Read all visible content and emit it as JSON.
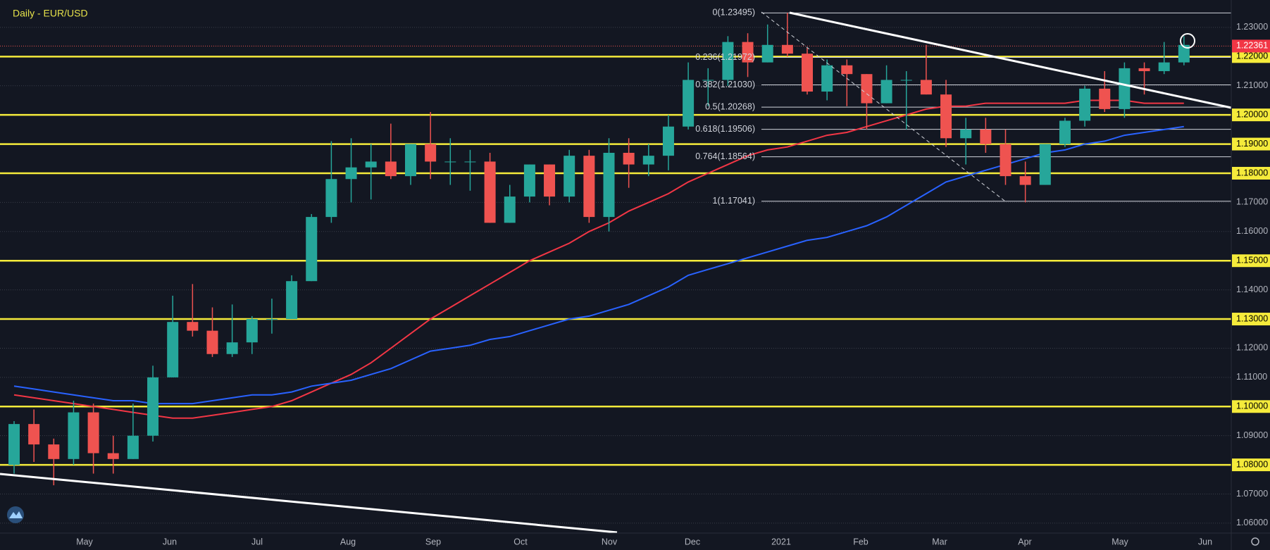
{
  "chart_data": {
    "type": "candlestick",
    "title": "Daily - EUR/USD",
    "x_labels": [
      "May",
      "Jun",
      "Jul",
      "Aug",
      "Sep",
      "Oct",
      "Nov",
      "Dec",
      "2021",
      "Feb",
      "Mar",
      "Apr",
      "May",
      "Jun"
    ],
    "candles": {
      "open": [
        1.08,
        1.094,
        1.087,
        1.082,
        1.098,
        1.084,
        1.082,
        1.09,
        1.11,
        1.129,
        1.126,
        1.118,
        1.122,
        1.13,
        1.13,
        1.143,
        1.165,
        1.178,
        1.182,
        1.184,
        1.179,
        1.19,
        1.184,
        1.184,
        1.184,
        1.163,
        1.172,
        1.183,
        1.172,
        1.186,
        1.165,
        1.187,
        1.183,
        1.186,
        1.196,
        1.212,
        1.212,
        1.225,
        1.218,
        1.224,
        1.221,
        1.208,
        1.217,
        1.214,
        1.204,
        1.212,
        1.212,
        1.207,
        1.192,
        1.195,
        1.19,
        1.179,
        1.176,
        1.19,
        1.198,
        1.209,
        1.202,
        1.216,
        1.215,
        1.218
      ],
      "high": [
        1.095,
        1.099,
        1.089,
        1.102,
        1.101,
        1.09,
        1.101,
        1.114,
        1.138,
        1.142,
        1.134,
        1.135,
        1.131,
        1.137,
        1.145,
        1.166,
        1.191,
        1.192,
        1.19,
        1.197,
        1.19,
        1.201,
        1.192,
        1.188,
        1.187,
        1.176,
        1.183,
        1.183,
        1.188,
        1.188,
        1.192,
        1.192,
        1.19,
        1.2,
        1.218,
        1.216,
        1.227,
        1.228,
        1.231,
        1.235,
        1.223,
        1.219,
        1.219,
        1.214,
        1.217,
        1.215,
        1.224,
        1.212,
        1.199,
        1.199,
        1.195,
        1.184,
        1.19,
        1.199,
        1.21,
        1.215,
        1.218,
        1.218,
        1.225,
        1.227
      ],
      "low": [
        1.077,
        1.081,
        1.073,
        1.08,
        1.077,
        1.077,
        1.082,
        1.088,
        1.11,
        1.124,
        1.117,
        1.117,
        1.118,
        1.125,
        1.13,
        1.143,
        1.163,
        1.17,
        1.171,
        1.178,
        1.176,
        1.178,
        1.176,
        1.174,
        1.163,
        1.163,
        1.17,
        1.169,
        1.17,
        1.163,
        1.16,
        1.175,
        1.179,
        1.181,
        1.195,
        1.203,
        1.21,
        1.213,
        1.218,
        1.22,
        1.207,
        1.205,
        1.203,
        1.195,
        1.204,
        1.195,
        1.207,
        1.189,
        1.183,
        1.187,
        1.176,
        1.17,
        1.176,
        1.189,
        1.196,
        1.201,
        1.199,
        1.207,
        1.214,
        1.217
      ],
      "close": [
        1.094,
        1.087,
        1.082,
        1.098,
        1.084,
        1.082,
        1.09,
        1.11,
        1.129,
        1.126,
        1.118,
        1.122,
        1.13,
        1.13,
        1.143,
        1.165,
        1.178,
        1.182,
        1.184,
        1.179,
        1.19,
        1.184,
        1.184,
        1.184,
        1.163,
        1.172,
        1.183,
        1.172,
        1.186,
        1.165,
        1.187,
        1.183,
        1.186,
        1.196,
        1.212,
        1.212,
        1.225,
        1.218,
        1.224,
        1.221,
        1.208,
        1.217,
        1.214,
        1.204,
        1.212,
        1.212,
        1.207,
        1.192,
        1.195,
        1.19,
        1.179,
        1.176,
        1.19,
        1.198,
        1.209,
        1.202,
        1.216,
        1.215,
        1.218,
        1.224
      ]
    },
    "up_color": "#26a69a",
    "down_color": "#ef5350",
    "moving_averages": [
      {
        "color": "#f23645",
        "values": [
          1.104,
          1.103,
          1.102,
          1.101,
          1.1,
          1.099,
          1.098,
          1.097,
          1.096,
          1.096,
          1.097,
          1.098,
          1.099,
          1.1,
          1.102,
          1.105,
          1.108,
          1.111,
          1.115,
          1.12,
          1.125,
          1.13,
          1.134,
          1.138,
          1.142,
          1.146,
          1.15,
          1.153,
          1.156,
          1.16,
          1.163,
          1.167,
          1.17,
          1.173,
          1.177,
          1.18,
          1.183,
          1.186,
          1.188,
          1.189,
          1.191,
          1.193,
          1.194,
          1.196,
          1.198,
          1.2,
          1.202,
          1.203,
          1.203,
          1.204,
          1.204,
          1.204,
          1.204,
          1.204,
          1.205,
          1.205,
          1.205,
          1.204,
          1.204,
          1.204
        ]
      },
      {
        "color": "#2962ff",
        "values": [
          1.107,
          1.106,
          1.105,
          1.104,
          1.103,
          1.102,
          1.102,
          1.101,
          1.101,
          1.101,
          1.102,
          1.103,
          1.104,
          1.104,
          1.105,
          1.107,
          1.108,
          1.109,
          1.111,
          1.113,
          1.116,
          1.119,
          1.12,
          1.121,
          1.123,
          1.124,
          1.126,
          1.128,
          1.13,
          1.131,
          1.133,
          1.135,
          1.138,
          1.141,
          1.145,
          1.147,
          1.149,
          1.151,
          1.153,
          1.155,
          1.157,
          1.158,
          1.16,
          1.162,
          1.165,
          1.169,
          1.173,
          1.177,
          1.179,
          1.181,
          1.183,
          1.185,
          1.187,
          1.188,
          1.19,
          1.191,
          1.193,
          1.194,
          1.195,
          1.196
        ]
      }
    ],
    "ylim": [
      1.0566,
      1.2394
    ],
    "yticks": [
      {
        "value": 1.06,
        "label": "1.06000"
      },
      {
        "value": 1.07,
        "label": "1.07000"
      },
      {
        "value": 1.08,
        "label": "1.08000"
      },
      {
        "value": 1.09,
        "label": "1.09000"
      },
      {
        "value": 1.1,
        "label": "1.10000"
      },
      {
        "value": 1.11,
        "label": "1.11000"
      },
      {
        "value": 1.12,
        "label": "1.12000"
      },
      {
        "value": 1.13,
        "label": "1.13000"
      },
      {
        "value": 1.14,
        "label": "1.14000"
      },
      {
        "value": 1.15,
        "label": "1.15000"
      },
      {
        "value": 1.16,
        "label": "1.16000"
      },
      {
        "value": 1.17,
        "label": "1.17000"
      },
      {
        "value": 1.18,
        "label": "1.18000"
      },
      {
        "value": 1.19,
        "label": "1.19000"
      },
      {
        "value": 1.2,
        "label": "1.20000"
      },
      {
        "value": 1.21,
        "label": "1.21000"
      },
      {
        "value": 1.22,
        "label": "1.22000"
      },
      {
        "value": 1.23,
        "label": "1.23000"
      }
    ],
    "levels": [
      1.22,
      1.2,
      1.19,
      1.18,
      1.15,
      1.13,
      1.1,
      1.08
    ],
    "level_color": "#f5eb3b",
    "fib_levels": [
      {
        "value": 1.23495,
        "label": "0(1.23495)"
      },
      {
        "value": 1.21972,
        "label": "0.236(1.21972)"
      },
      {
        "value": 1.2103,
        "label": "0.382(1.21030)"
      },
      {
        "value": 1.20268,
        "label": "0.5(1.20268)"
      },
      {
        "value": 1.19506,
        "label": "0.618(1.19506)"
      },
      {
        "value": 1.18564,
        "label": "0.764(1.18564)"
      },
      {
        "value": 1.17041,
        "label": "1(1.17041)"
      }
    ],
    "last_price": {
      "value": 1.22361,
      "label": "1.22361"
    }
  }
}
